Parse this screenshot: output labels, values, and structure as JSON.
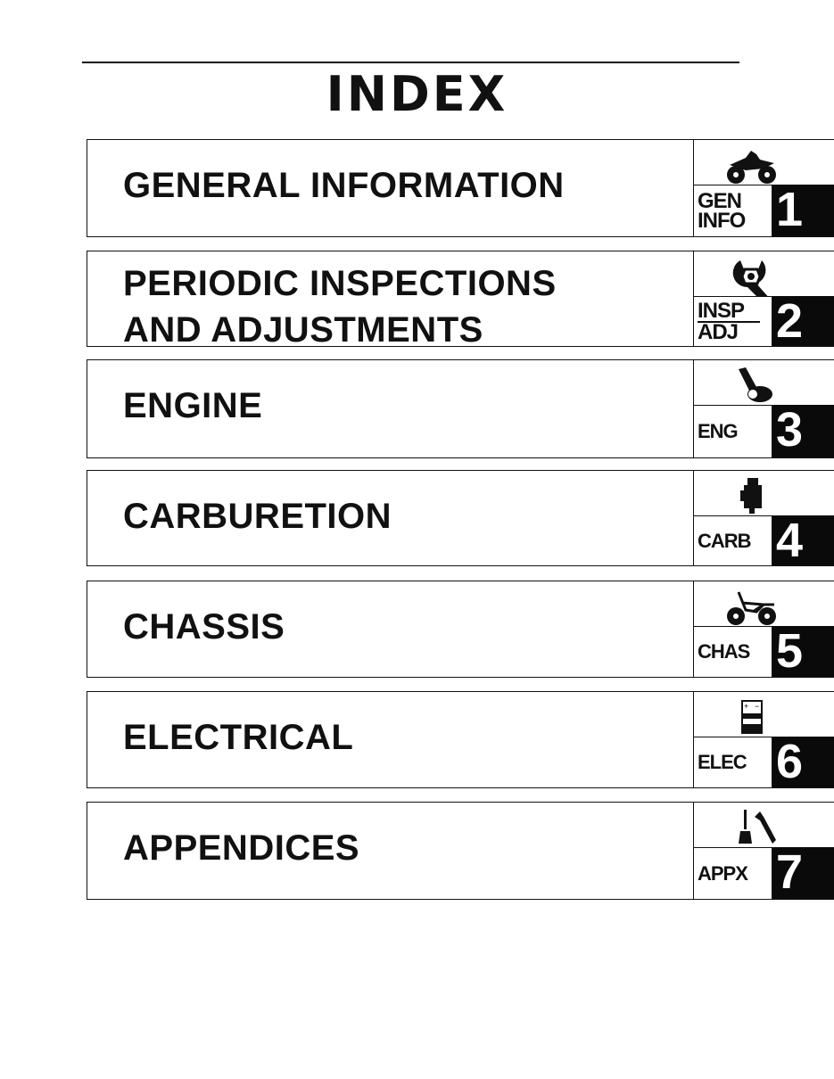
{
  "page": {
    "title": "INDEX",
    "sections": [
      {
        "title_lines": [
          "GENERAL  INFORMATION"
        ],
        "tab_label": [
          "GEN",
          "INFO"
        ],
        "number": "1",
        "icon": "atv-icon"
      },
      {
        "title_lines": [
          "PERIODIC  INSPECTIONS",
          "AND  ADJUSTMENTS"
        ],
        "tab_label": [
          "INSP",
          "ADJ"
        ],
        "number": "2",
        "icon": "wrench-nut-icon"
      },
      {
        "title_lines": [
          "ENGINE"
        ],
        "tab_label": [
          "ENG"
        ],
        "number": "3",
        "icon": "engine-piston-icon"
      },
      {
        "title_lines": [
          "CARBURETION"
        ],
        "tab_label": [
          "CARB"
        ],
        "number": "4",
        "icon": "carburetor-icon"
      },
      {
        "title_lines": [
          "CHASSIS"
        ],
        "tab_label": [
          "CHAS"
        ],
        "number": "5",
        "icon": "atv-frame-icon"
      },
      {
        "title_lines": [
          "ELECTRICAL"
        ],
        "tab_label": [
          "ELEC"
        ],
        "number": "6",
        "icon": "battery-icon"
      },
      {
        "title_lines": [
          "APPENDICES"
        ],
        "tab_label": [
          "APPX"
        ],
        "number": "7",
        "icon": "oilcan-wrench-icon"
      }
    ]
  }
}
